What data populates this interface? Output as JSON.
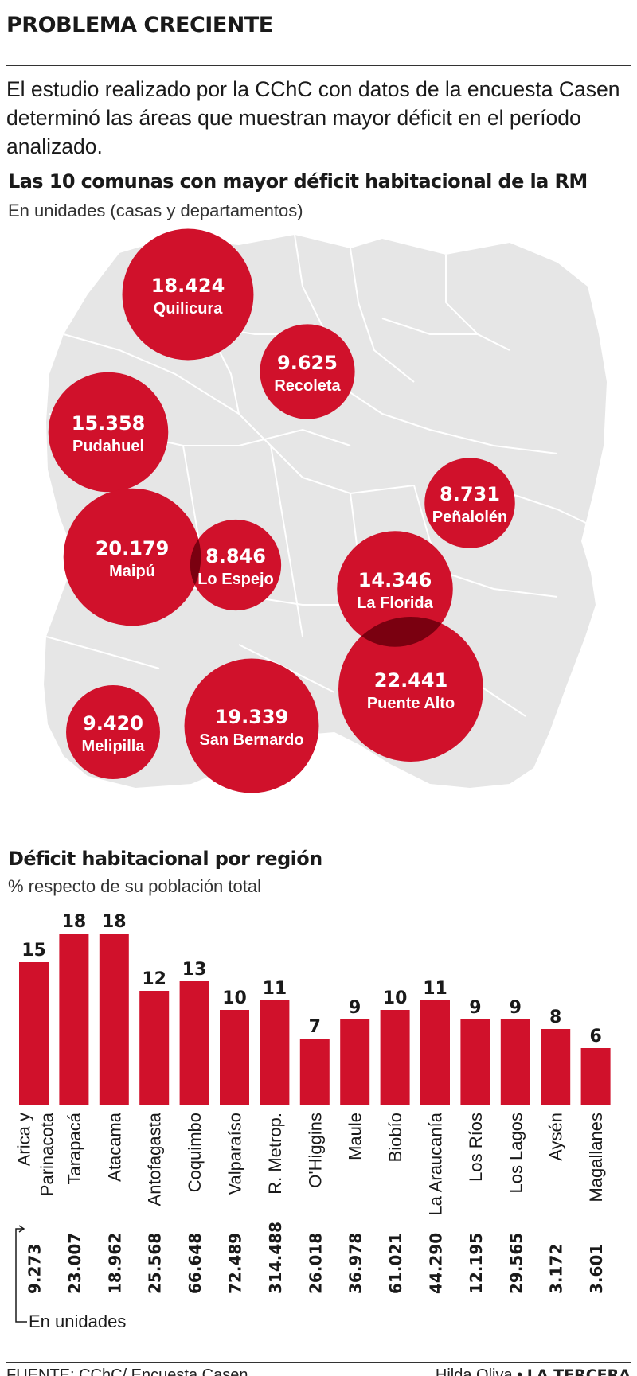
{
  "header": {
    "title": "PROBLEMA CRECIENTE",
    "intro": "El estudio realizado por la CChC con datos de la encuesta Casen determinó las áreas que muestran mayor déficit en el período analizado."
  },
  "colors": {
    "accent": "#d0112b",
    "overlap": "#7a0010",
    "map_fill": "#e6e6e6",
    "map_lines": "#ffffff"
  },
  "chart_data": [
    {
      "type": "bubble-map",
      "title": "Las 10 comunas con mayor déficit habitacional de la RM",
      "subtitle": "En unidades (casas y departamentos)",
      "points": [
        {
          "label": "Quilicura",
          "value": 18424,
          "value_text": "18.424"
        },
        {
          "label": "Recoleta",
          "value": 9625,
          "value_text": "9.625"
        },
        {
          "label": "Pudahuel",
          "value": 15358,
          "value_text": "15.358"
        },
        {
          "label": "Peñalolén",
          "value": 8731,
          "value_text": "8.731"
        },
        {
          "label": "Maipú",
          "value": 20179,
          "value_text": "20.179"
        },
        {
          "label": "Lo Espejo",
          "value": 8846,
          "value_text": "8.846"
        },
        {
          "label": "La Florida",
          "value": 14346,
          "value_text": "14.346"
        },
        {
          "label": "Puente Alto",
          "value": 22441,
          "value_text": "22.441"
        },
        {
          "label": "Melipilla",
          "value": 9420,
          "value_text": "9.420"
        },
        {
          "label": "San Bernardo",
          "value": 19339,
          "value_text": "19.339"
        }
      ]
    },
    {
      "type": "bar",
      "title": "Déficit habitacional por región",
      "subtitle": "% respecto de su población total",
      "units_label": "En unidades",
      "ylim": [
        0,
        18
      ],
      "categories": [
        "Arica y Parinacota",
        "Tarapacá",
        "Atacama",
        "Antofagasta",
        "Coquimbo",
        "Valparaíso",
        "R. Metrop.",
        "O'Higgins",
        "Maule",
        "Biobío",
        "La Araucanía",
        "Los Ríos",
        "Los Lagos",
        "Aysén",
        "Magallanes"
      ],
      "category_lines": [
        [
          "Arica y",
          "Parinacota"
        ],
        [
          "Tarapacá"
        ],
        [
          "Atacama"
        ],
        [
          "Antofagasta"
        ],
        [
          "Coquimbo"
        ],
        [
          "Valparaíso"
        ],
        [
          "R. Metrop."
        ],
        [
          "O'Higgins"
        ],
        [
          "Maule"
        ],
        [
          "Biobío"
        ],
        [
          "La Araucanía"
        ],
        [
          "Los Ríos"
        ],
        [
          "Los Lagos"
        ],
        [
          "Aysén"
        ],
        [
          "Magallanes"
        ]
      ],
      "values": [
        15,
        18,
        18,
        12,
        13,
        10,
        11,
        7,
        9,
        10,
        11,
        9,
        9,
        8,
        6
      ],
      "units": [
        "9.273",
        "23.007",
        "18.962",
        "25.568",
        "66.648",
        "72.489",
        "314.488",
        "26.018",
        "36.978",
        "61.021",
        "44.290",
        "12.195",
        "29.565",
        "3.172",
        "3.601"
      ]
    }
  ],
  "footer": {
    "source": "FUENTE: CChC/ Encuesta Casen.",
    "author": "Hilda Oliva",
    "separator": "•",
    "brand": "LA TERCERA"
  }
}
